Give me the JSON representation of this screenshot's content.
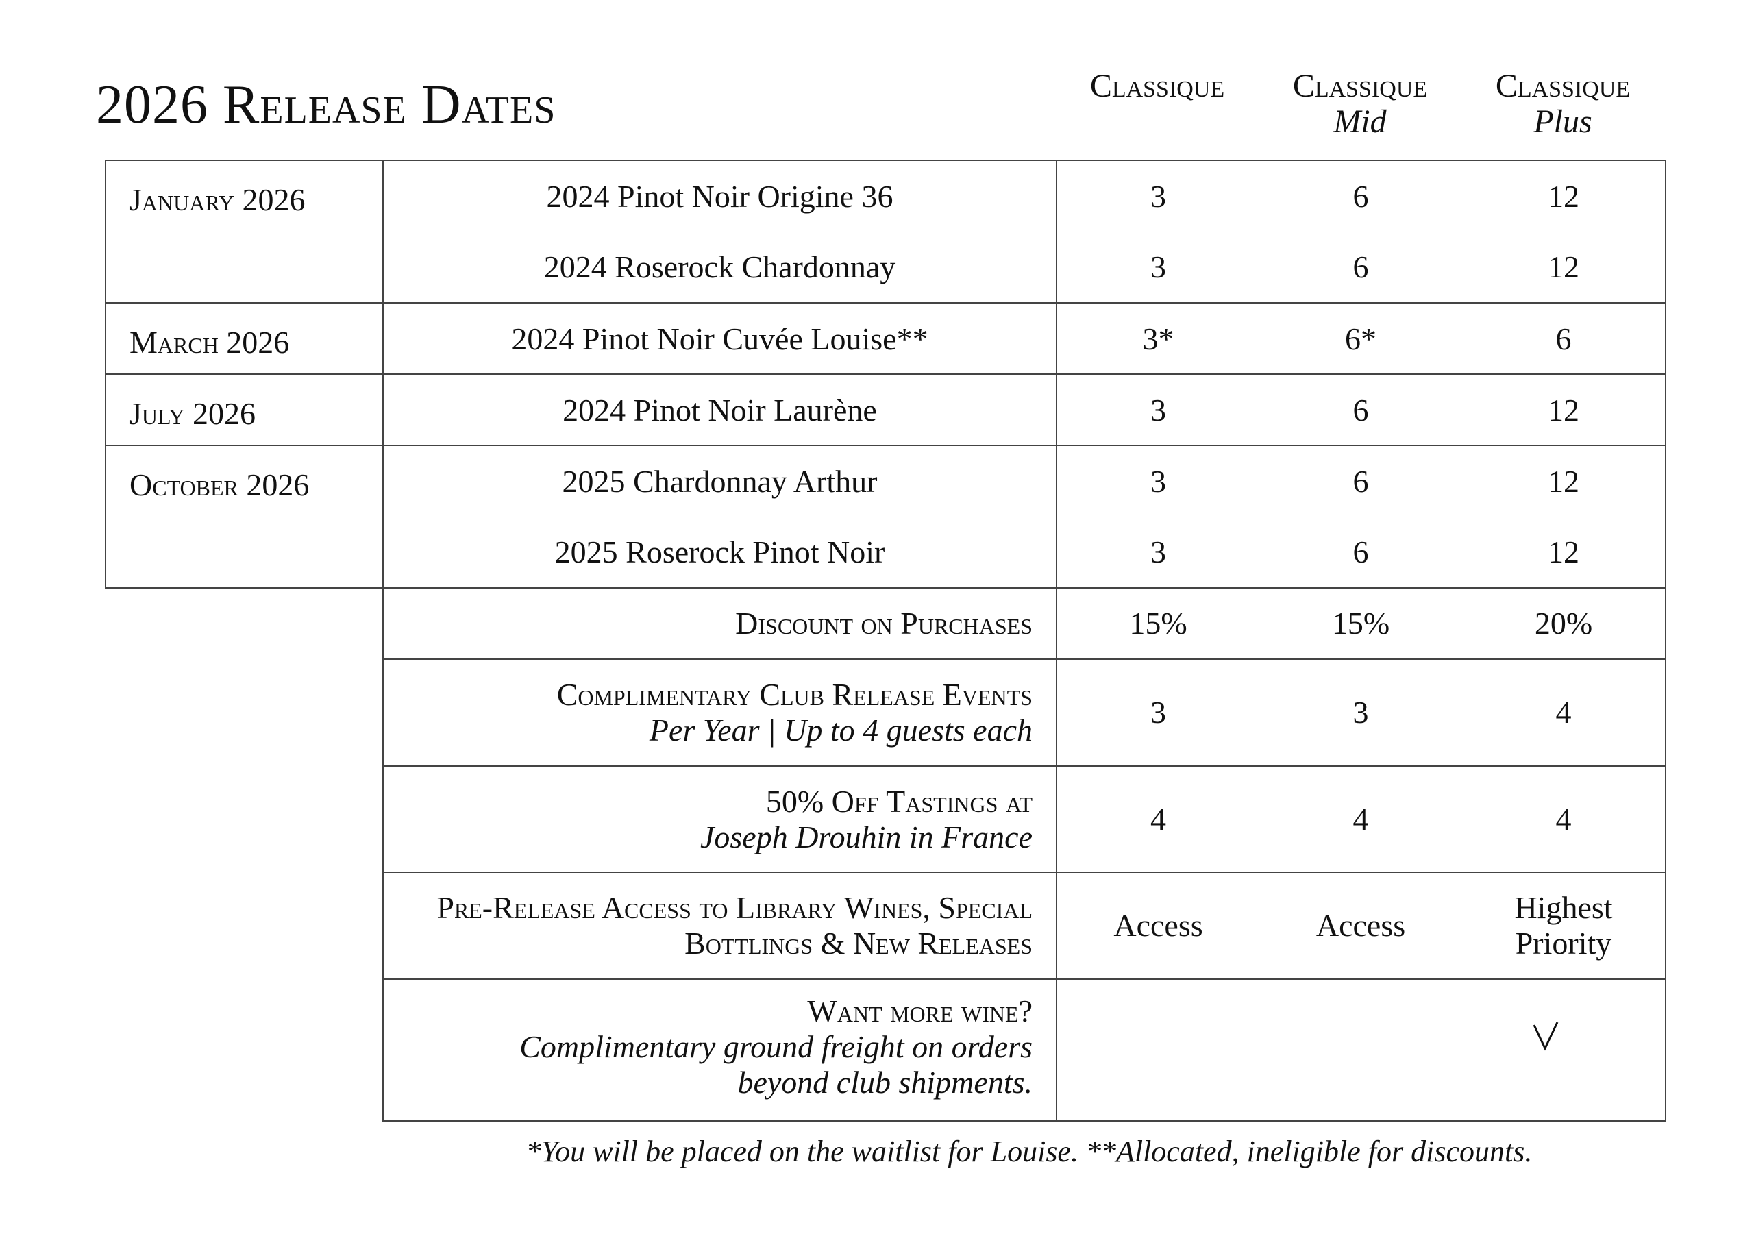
{
  "title": "2026 Release Dates",
  "tiers": [
    {
      "name": "Classique",
      "sub": ""
    },
    {
      "name": "Classique",
      "sub": "Mid"
    },
    {
      "name": "Classique",
      "sub": "Plus"
    }
  ],
  "releases": [
    {
      "month": "January 2026",
      "wines": [
        {
          "name": "2024 Pinot Noir Origine 36",
          "values": [
            "3",
            "6",
            "12"
          ]
        },
        {
          "name": "2024 Roserock Chardonnay",
          "values": [
            "3",
            "6",
            "12"
          ]
        }
      ]
    },
    {
      "month": "March 2026",
      "wines": [
        {
          "name": "2024 Pinot Noir Cuvée Louise**",
          "values": [
            "3*",
            "6*",
            "6"
          ]
        }
      ]
    },
    {
      "month": "July 2026",
      "wines": [
        {
          "name": "2024 Pinot Noir Laurène",
          "values": [
            "3",
            "6",
            "12"
          ]
        }
      ]
    },
    {
      "month": "October 2026",
      "wines": [
        {
          "name": "2025 Chardonnay Arthur",
          "values": [
            "3",
            "6",
            "12"
          ]
        },
        {
          "name": "2025 Roserock Pinot Noir",
          "values": [
            "3",
            "6",
            "12"
          ]
        }
      ]
    }
  ],
  "benefits": [
    {
      "label": "Discount on Purchases",
      "sub": "",
      "values": [
        "15%",
        "15%",
        "20%"
      ]
    },
    {
      "label": "Complimentary Club Release Events",
      "sub": "Per Year | Up to 4 guests each",
      "values": [
        "3",
        "3",
        "4"
      ]
    },
    {
      "label": "50% Off Tastings at",
      "sub": "Joseph Drouhin in France",
      "values": [
        "4",
        "4",
        "4"
      ]
    },
    {
      "label": "Pre-Release Access to Library Wines, Special Bottlings & New Releases",
      "sub": "",
      "values": [
        "Access",
        "Access",
        "Highest Priority"
      ]
    },
    {
      "label": "Want more wine?",
      "sub": "Complimentary ground freight on orders beyond club shipments.",
      "values": [
        "",
        "",
        "check-icon"
      ]
    }
  ],
  "footnote": "*You will be placed on the waitlist for Louise. **Allocated, ineligible for discounts."
}
